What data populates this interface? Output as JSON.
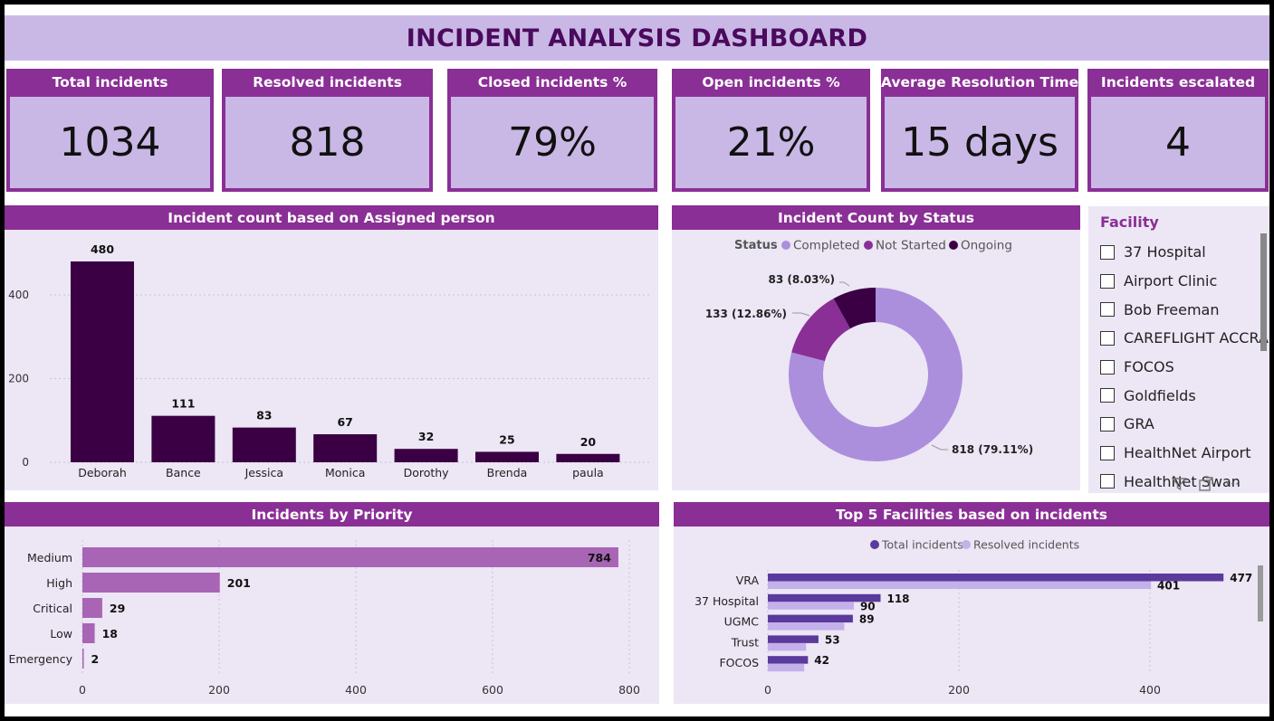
{
  "dashboard": {
    "title": "INCIDENT ANALYSIS DASHBOARD"
  },
  "kpis": [
    {
      "label": "Total incidents",
      "value": "1034"
    },
    {
      "label": "Resolved incidents",
      "value": "818"
    },
    {
      "label": "Closed incidents %",
      "value": "79%"
    },
    {
      "label": "Open incidents %",
      "value": "21%"
    },
    {
      "label": "Average Resolution Time",
      "value": "15 days"
    },
    {
      "label": "Incidents escalated",
      "value": "4"
    }
  ],
  "colors": {
    "header_purple": "#8a2f95",
    "title_band": "#c9b8e6",
    "title_text": "#4b0a5c",
    "panel_bg": "#ece6f5",
    "bar_dark": "#3a0043",
    "priority_bar": "#a865b5",
    "completed": "#ab8fdc",
    "not_started": "#8a2f95",
    "ongoing": "#3a0043",
    "total_series": "#5a3a9c",
    "resolved_series": "#c4b0ea"
  },
  "facility_slicer": {
    "title": "Facility",
    "items": [
      "37 Hospital",
      "Airport Clinic",
      "Bob Freeman",
      "CAREFLIGHT ACCRA",
      "FOCOS",
      "Goldfields",
      "GRA",
      "HealthNet Airport",
      "HealthNet Swan"
    ]
  },
  "toolbar": {
    "filter_icon": "filter-icon",
    "focus_icon": "focus-mode-icon",
    "more_icon": "more-options-icon",
    "more_glyph": "···"
  },
  "chart_data": [
    {
      "type": "bar",
      "title": "Incident count based on Assigned person",
      "categories": [
        "Deborah",
        "Bance",
        "Jessica",
        "Monica",
        "Dorothy",
        "Brenda",
        "paula"
      ],
      "values": [
        480,
        111,
        83,
        67,
        32,
        25,
        20
      ],
      "yticks": [
        0,
        200,
        400
      ],
      "ylim": [
        0,
        480
      ],
      "grid": true
    },
    {
      "type": "pie",
      "title": "Incident Count by Status",
      "legend_title": "Status",
      "legend_position": "top",
      "slices": [
        {
          "name": "Completed",
          "value": 818,
          "label": "818 (79.11%)"
        },
        {
          "name": "Not Started",
          "value": 133,
          "label": "133 (12.86%)"
        },
        {
          "name": "Ongoing",
          "value": 83,
          "label": "83 (8.03%)"
        }
      ]
    },
    {
      "type": "bar",
      "orientation": "horizontal",
      "title": "Incidents by Priority",
      "categories": [
        "Medium",
        "High",
        "Critical",
        "Low",
        "Emergency"
      ],
      "values": [
        784,
        201,
        29,
        18,
        2
      ],
      "xticks": [
        0,
        200,
        400,
        600,
        800
      ],
      "xlim": [
        0,
        800
      ],
      "grid": true
    },
    {
      "type": "bar",
      "orientation": "horizontal",
      "title": "Top 5 Facilities based on incidents",
      "legend_position": "top",
      "categories": [
        "VRA",
        "37 Hospital",
        "UGMC",
        "Trust",
        "FOCOS"
      ],
      "series": [
        {
          "name": "Total incidents",
          "values": [
            477,
            118,
            89,
            53,
            42
          ]
        },
        {
          "name": "Resolved incidents",
          "values": [
            401,
            90,
            80,
            40,
            38
          ]
        }
      ],
      "xticks": [
        0,
        200,
        400
      ],
      "xlim": [
        0,
        520
      ],
      "grid": true
    }
  ]
}
